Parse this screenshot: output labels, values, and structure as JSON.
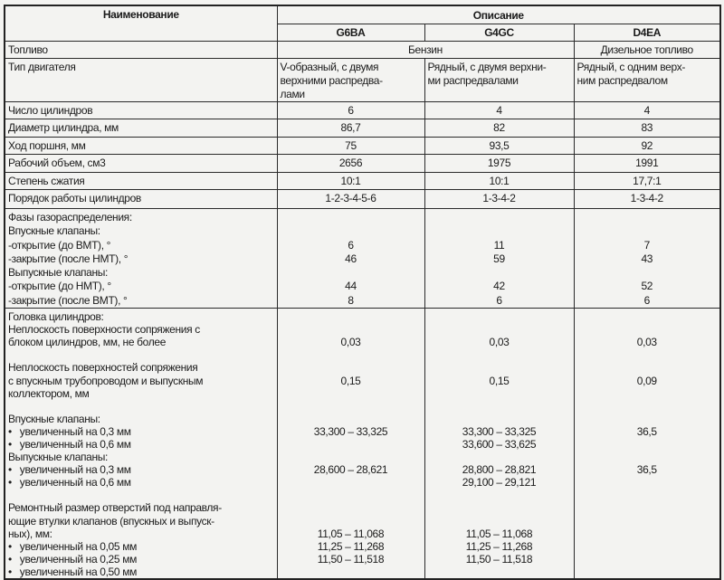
{
  "header": {
    "name_col": "Наименование",
    "desc_col": "Описание",
    "engines": [
      "G6BA",
      "G4GC",
      "D4EA"
    ]
  },
  "fuel_row": {
    "label": "Топливо",
    "petrol": "Бензин",
    "diesel": "Дизельное топливо"
  },
  "rows": [
    {
      "label": "Тип двигателя",
      "values": [
        "V-образный, с двумя\nверхними распредва-\nлами",
        "Рядный, с двумя верхни-\nми распредвалами",
        "Рядный, с одним верх-\nним распредвалом"
      ],
      "left": true
    },
    {
      "label": "Число цилиндров",
      "values": [
        "6",
        "4",
        "4"
      ]
    },
    {
      "label": "Диаметр цилиндра, мм",
      "values": [
        "86,7",
        "82",
        "83"
      ]
    },
    {
      "label": "Ход поршня, мм",
      "values": [
        "75",
        "93,5",
        "92"
      ]
    },
    {
      "label": "Рабочий объем, см3",
      "values": [
        "2656",
        "1975",
        "1991"
      ]
    },
    {
      "label": "Степень сжатия",
      "values": [
        "10:1",
        "10:1",
        "17,7:1"
      ]
    },
    {
      "label": "Порядок работы цилиндров",
      "values": [
        "1-2-3-4-5-6",
        "1-3-4-2",
        "1-3-4-2"
      ]
    },
    {
      "label": "Фазы газораспределения:\nВпускные клапаны:\n-открытие (до ВМТ), °\n-закрытие (после НМТ), °\nВыпускные клапаны:\n-открытие (до НМТ), °\n-закрытие (после ВМТ), °",
      "values": [
        "\n\n6\n46\n\n44\n8",
        "\n\n11\n59\n\n42\n6",
        "\n\n7\n43\n\n52\n6"
      ],
      "cls": "phase"
    },
    {
      "label": "Головка цилиндров:\nНеплоскость поверхности сопряжения с\nблоком цилиндров, мм, не более\n\nНеплоскость поверхностей сопряжения\nс впускным трубопроводом и выпускным\nколлектором, мм\n\nВпускные клапаны:\n•   увеличенный на 0,3 мм\n•   увеличенный на 0,6 мм\nВыпускные клапаны:\n•   увеличенный на 0,3 мм\n•   увеличенный на 0,6 мм\n\nРемонтный размер отверстий под направля-\nющие втулки клапанов (впускных и выпуск-\nных), мм:\n•   увеличенный на 0,05 мм\n•   увеличенный на 0,25 мм\n•   увеличенный на 0,50 мм",
      "values": [
        "\n\n0,03\n\n\n0,15\n\n\n\n33,300 – 33,325\n\n\n28,600 – 28,621\n\n\n\n\n11,05 – 11,068\n11,25 – 11,268\n11,50 – 11,518",
        "\n\n0,03\n\n\n0,15\n\n\n\n33,300 – 33,325\n33,600 – 33,625\n\n28,800 – 28,821\n29,100 – 29,121\n\n\n\n11,05 – 11,068\n11,25 – 11,268\n11,50 – 11,518",
        "\n\n0,03\n\n\n0,09\n\n\n\n36,5\n\n\n36,5"
      ],
      "cls": "head"
    }
  ]
}
